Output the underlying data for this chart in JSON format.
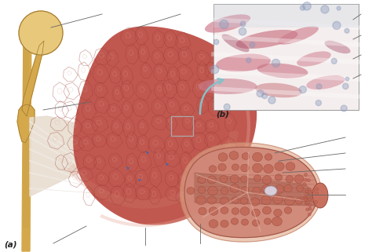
{
  "background_color": "#ffffff",
  "label_a": "(a)",
  "label_b": "(b)",
  "arrow_color": "#88bfc8",
  "line_color": "#666666",
  "muscle_color": "#c05850",
  "muscle_mid": "#b84840",
  "muscle_dark": "#9a3830",
  "muscle_light": "#d07868",
  "fascicle_sep": "#c87868",
  "bone_color": "#d4a84b",
  "bone_light": "#e8c87a",
  "bone_dark": "#a07830",
  "tendon_color": "#e8ddd0",
  "tendon_line": "#d0c4b4",
  "micro_bg": "#f5eeee",
  "micro_pink": "#d4748c",
  "micro_blue_gray": "#a8b8cc",
  "fiber_bg": "#c87060",
  "fiber_sep": "#b06050",
  "small_fiber_color": "#c06858",
  "cylinder_color": "#b87060",
  "cylinder_line": "#a06050",
  "nucleus_color": "#dde0f0"
}
